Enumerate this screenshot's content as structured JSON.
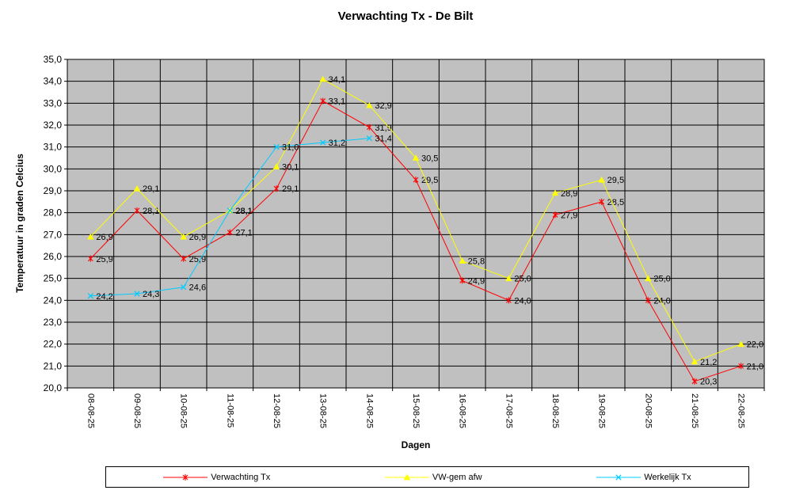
{
  "page": {
    "background": "#FFFFFF"
  },
  "chart_data": {
    "type": "line",
    "title": "Verwachting Tx - De Bilt",
    "xlabel": "Dagen",
    "ylabel": "Temperatuur in graden Celcius",
    "ylim": [
      20.0,
      35.0
    ],
    "ytick_step": 1.0,
    "decimal_separator": ",",
    "grid": true,
    "plot_background": "#C0C0C0",
    "gridline_color": "#000000",
    "axis_color": "#000000",
    "data_label_color": "#000000",
    "legend_position": "bottom",
    "categories": [
      "08-08-25",
      "09-08-25",
      "10-08-25",
      "11-08-25",
      "12-08-25",
      "13-08-25",
      "14-08-25",
      "15-08-25",
      "16-08-25",
      "17-08-25",
      "18-08-25",
      "19-08-25",
      "20-08-25",
      "21-08-25",
      "22-08-25"
    ],
    "series": [
      {
        "name": "Verwachting Tx",
        "color": "#FF0000",
        "marker": "star",
        "values": [
          25.9,
          28.1,
          25.9,
          27.1,
          29.1,
          33.1,
          31.9,
          29.5,
          24.9,
          24.0,
          27.9,
          28.5,
          24.0,
          20.3,
          21.0
        ]
      },
      {
        "name": "VW-gem afw",
        "color": "#FFFF00",
        "marker": "triangle",
        "values": [
          26.9,
          29.1,
          26.9,
          28.1,
          30.1,
          34.1,
          32.9,
          30.5,
          25.8,
          25.0,
          28.9,
          29.5,
          25.0,
          21.2,
          22.0
        ]
      },
      {
        "name": "Werkelijk Tx",
        "color": "#00CCFF",
        "marker": "x",
        "values": [
          24.2,
          24.3,
          24.6,
          28.1,
          31.0,
          31.2,
          31.4,
          null,
          null,
          null,
          null,
          null,
          null,
          null,
          null
        ]
      }
    ]
  }
}
